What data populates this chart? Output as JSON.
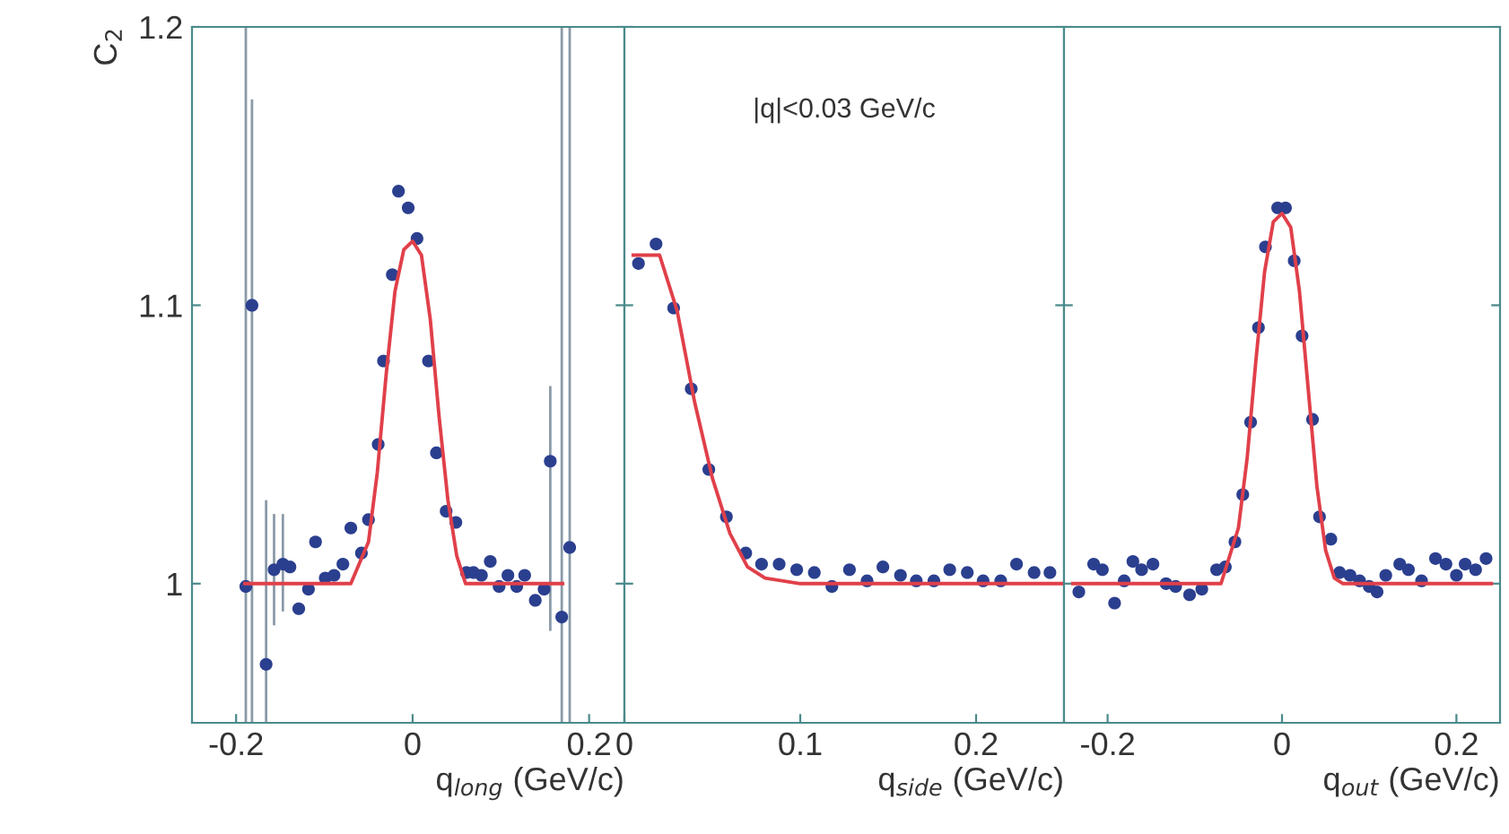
{
  "chart_data": [
    {
      "type": "scatter",
      "xlabel": "q$_{long}$ (GeV/c)",
      "ylabel": "C$_{2}$",
      "xlim": [
        -0.25,
        0.24
      ],
      "ylim": [
        0.95,
        1.2
      ],
      "xticks": [
        -0.2,
        0,
        0.2
      ],
      "yticks": [
        1,
        1.1,
        1.2
      ],
      "grid": false,
      "legend": false,
      "series": [
        {
          "marker": "circle",
          "color": "#2b3f8f",
          "x": [
            -0.189,
            -0.182,
            -0.166,
            -0.157,
            -0.147,
            -0.139,
            -0.129,
            -0.118,
            -0.11,
            -0.099,
            -0.089,
            -0.079,
            -0.07,
            -0.058,
            -0.05,
            -0.039,
            -0.033,
            -0.023,
            -0.016,
            -0.005,
            0.005,
            0.018,
            0.027,
            0.038,
            0.049,
            0.061,
            0.069,
            0.078,
            0.088,
            0.098,
            0.108,
            0.118,
            0.127,
            0.139,
            0.149,
            0.156,
            0.169,
            0.178
          ],
          "values": [
            0.999,
            1.1,
            0.971,
            1.005,
            1.007,
            1.006,
            0.991,
            0.998,
            1.015,
            1.002,
            1.003,
            1.007,
            1.02,
            1.011,
            1.023,
            1.05,
            1.08,
            1.111,
            1.141,
            1.135,
            1.124,
            1.08,
            1.047,
            1.026,
            1.022,
            1.004,
            1.004,
            1.003,
            1.008,
            0.999,
            1.003,
            0.999,
            1.003,
            0.994,
            0.998,
            1.044,
            0.988,
            1.013
          ],
          "errors": [
            [
              0.95,
              1.2
            ],
            [
              0.95,
              1.174
            ],
            [
              0.95,
              1.03
            ],
            [
              0.985,
              1.025
            ],
            [
              0.99,
              1.025
            ],
            null,
            null,
            null,
            null,
            null,
            null,
            null,
            null,
            null,
            null,
            null,
            null,
            null,
            null,
            null,
            null,
            null,
            null,
            null,
            null,
            null,
            null,
            null,
            null,
            null,
            null,
            null,
            null,
            null,
            null,
            [
              0.983,
              1.071
            ],
            [
              0.95,
              1.2
            ],
            [
              0.95,
              1.2
            ]
          ]
        },
        {
          "type": "line",
          "color": "#e0404a",
          "x": [
            -0.19,
            -0.07,
            -0.05,
            -0.04,
            -0.03,
            -0.02,
            -0.01,
            0,
            0.01,
            0.02,
            0.03,
            0.04,
            0.05,
            0.06,
            0.17
          ],
          "values": [
            1.0,
            1.0,
            1.015,
            1.04,
            1.075,
            1.105,
            1.12,
            1.123,
            1.118,
            1.095,
            1.06,
            1.03,
            1.01,
            1.0,
            1.0
          ]
        }
      ]
    },
    {
      "type": "scatter",
      "xlabel": "q$_{side}$ (GeV/c)",
      "annotations": [
        "|q|<0.03 GeV/c"
      ],
      "xlim": [
        0,
        0.25
      ],
      "ylim": [
        0.95,
        1.2
      ],
      "xticks": [
        0,
        0.1,
        0.2
      ],
      "yticks": [
        1,
        1.1,
        1.2
      ],
      "tick_labels": "x",
      "grid": false,
      "legend": false,
      "series": [
        {
          "marker": "circle",
          "color": "#2b3f8f",
          "x": [
            0.008,
            0.018,
            0.028,
            0.038,
            0.048,
            0.058,
            0.069,
            0.078,
            0.088,
            0.098,
            0.108,
            0.118,
            0.128,
            0.138,
            0.147,
            0.157,
            0.166,
            0.176,
            0.185,
            0.195,
            0.204,
            0.214,
            0.223,
            0.233,
            0.242
          ],
          "values": [
            1.115,
            1.122,
            1.099,
            1.07,
            1.041,
            1.024,
            1.011,
            1.007,
            1.007,
            1.005,
            1.004,
            0.999,
            1.005,
            1.001,
            1.006,
            1.003,
            1.001,
            1.001,
            1.005,
            1.004,
            1.001,
            1.001,
            1.007,
            1.004,
            1.004
          ]
        },
        {
          "type": "line",
          "color": "#e0404a",
          "x": [
            0.005,
            0.02,
            0.03,
            0.04,
            0.05,
            0.06,
            0.07,
            0.08,
            0.1,
            0.25
          ],
          "values": [
            1.118,
            1.118,
            1.098,
            1.065,
            1.038,
            1.018,
            1.006,
            1.002,
            1.0,
            1.0
          ]
        }
      ]
    },
    {
      "type": "scatter",
      "xlabel": "q$_{out}$ (GeV/c)",
      "xlim": [
        -0.25,
        0.25
      ],
      "ylim": [
        0.95,
        1.2
      ],
      "xticks": [
        -0.2,
        0,
        0.2
      ],
      "yticks": [
        1,
        1.1,
        1.2
      ],
      "tick_labels": "x",
      "grid": false,
      "legend": false,
      "series": [
        {
          "marker": "circle",
          "color": "#2b3f8f",
          "x": [
            -0.233,
            -0.216,
            -0.206,
            -0.192,
            -0.181,
            -0.171,
            -0.161,
            -0.148,
            -0.133,
            -0.122,
            -0.106,
            -0.092,
            -0.075,
            -0.065,
            -0.054,
            -0.045,
            -0.036,
            -0.027,
            -0.019,
            -0.005,
            0.004,
            0.014,
            0.023,
            0.035,
            0.043,
            0.056,
            0.066,
            0.078,
            0.089,
            0.1,
            0.109,
            0.119,
            0.135,
            0.145,
            0.16,
            0.176,
            0.188,
            0.2,
            0.21,
            0.222,
            0.234
          ],
          "values": [
            0.997,
            1.007,
            1.005,
            0.993,
            1.001,
            1.008,
            1.005,
            1.007,
            1.0,
            0.999,
            0.996,
            0.998,
            1.005,
            1.006,
            1.015,
            1.032,
            1.058,
            1.092,
            1.121,
            1.135,
            1.135,
            1.116,
            1.089,
            1.059,
            1.024,
            1.016,
            1.004,
            1.003,
            1.001,
            0.999,
            0.997,
            1.003,
            1.007,
            1.005,
            1.001,
            1.009,
            1.007,
            1.003,
            1.007,
            1.005,
            1.009
          ]
        },
        {
          "type": "line",
          "color": "#e0404a",
          "x": [
            -0.24,
            -0.07,
            -0.05,
            -0.04,
            -0.03,
            -0.02,
            -0.01,
            0,
            0.01,
            0.02,
            0.03,
            0.04,
            0.05,
            0.06,
            0.07,
            0.24
          ],
          "values": [
            1.0,
            1.0,
            1.02,
            1.045,
            1.08,
            1.112,
            1.13,
            1.133,
            1.128,
            1.105,
            1.07,
            1.035,
            1.012,
            1.002,
            1.0,
            1.0
          ]
        }
      ]
    }
  ]
}
